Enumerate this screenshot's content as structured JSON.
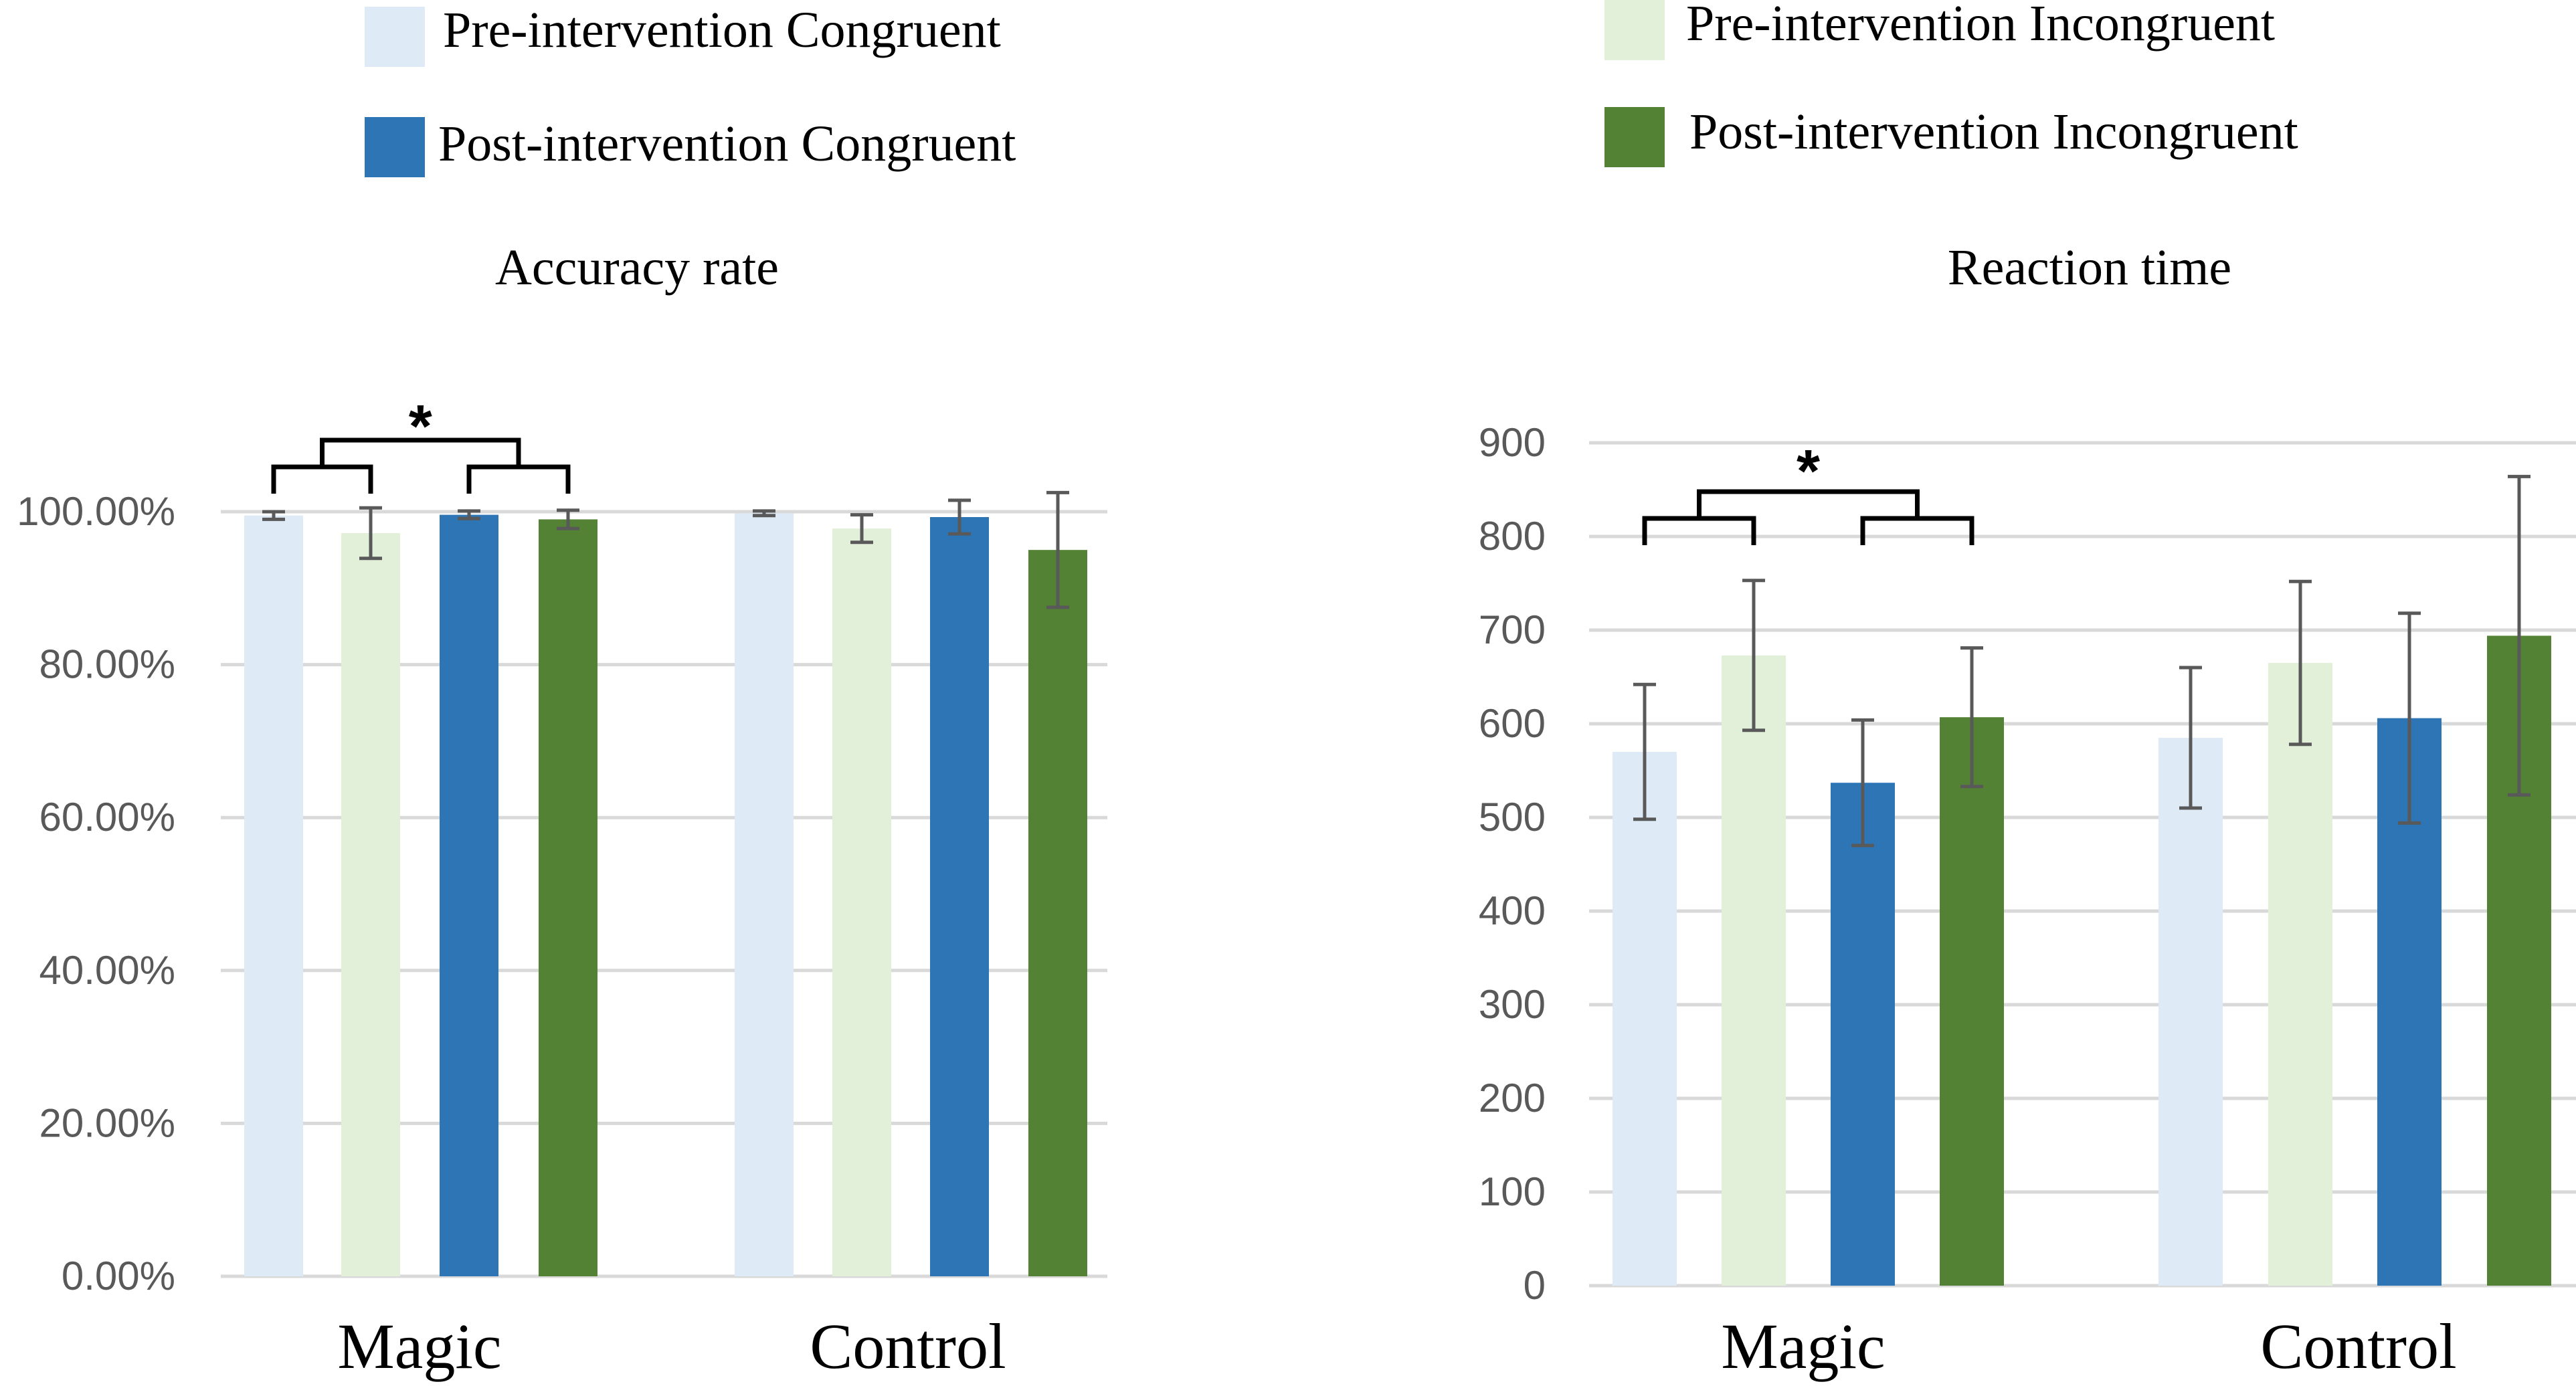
{
  "legend": [
    {
      "label": "Pre-intervention Congruent",
      "color": "#deebf7"
    },
    {
      "label": "Post-intervention Congruent",
      "color": "#2e75b6"
    },
    {
      "label": "Pre-intervention Incongruent",
      "color": "#e2f0d9"
    },
    {
      "label": "Post-intervention Incongruent",
      "color": "#548235"
    }
  ],
  "chart_data": [
    {
      "type": "bar",
      "title": "Accuracy rate",
      "categories": [
        "Magic",
        "Control"
      ],
      "ylim": [
        0,
        100
      ],
      "yticks": [
        0,
        20,
        40,
        60,
        80,
        100
      ],
      "ytick_labels": [
        "0.00%",
        "20.00%",
        "40.00%",
        "60.00%",
        "80.00%",
        "100.00%"
      ],
      "grid": true,
      "series": [
        {
          "name": "Pre-intervention Congruent",
          "color": "#deebf7",
          "values": [
            99.5,
            99.8
          ],
          "errors": [
            0.5,
            0.3
          ]
        },
        {
          "name": "Pre-intervention Incongruent",
          "color": "#e2f0d9",
          "values": [
            97.2,
            97.8
          ],
          "errors": [
            3.3,
            1.8
          ]
        },
        {
          "name": "Post-intervention Congruent",
          "color": "#2e75b6",
          "values": [
            99.6,
            99.3
          ],
          "errors": [
            0.5,
            2.2
          ]
        },
        {
          "name": "Post-intervention Incongruent",
          "color": "#548235",
          "values": [
            99.0,
            95.0
          ],
          "errors": [
            1.2,
            7.5
          ]
        }
      ],
      "annotations": [
        {
          "text": "*",
          "group": "Magic"
        }
      ]
    },
    {
      "type": "bar",
      "title": "Reaction time",
      "categories": [
        "Magic",
        "Control"
      ],
      "ylim": [
        0,
        900
      ],
      "yticks": [
        0,
        100,
        200,
        300,
        400,
        500,
        600,
        700,
        800,
        900
      ],
      "ytick_labels": [
        "0",
        "100",
        "200",
        "300",
        "400",
        "500",
        "600",
        "700",
        "800",
        "900"
      ],
      "grid": true,
      "series": [
        {
          "name": "Pre-intervention Congruent",
          "color": "#deebf7",
          "values": [
            570,
            585
          ],
          "errors": [
            72,
            75
          ]
        },
        {
          "name": "Pre-intervention Incongruent",
          "color": "#e2f0d9",
          "values": [
            673,
            665
          ],
          "errors": [
            80,
            87
          ]
        },
        {
          "name": "Post-intervention Congruent",
          "color": "#2e75b6",
          "values": [
            537,
            606
          ],
          "errors": [
            67,
            112
          ]
        },
        {
          "name": "Post-intervention Incongruent",
          "color": "#548235",
          "values": [
            607,
            694
          ],
          "errors": [
            74,
            170
          ]
        }
      ],
      "annotations": [
        {
          "text": "*",
          "group": "Magic"
        }
      ]
    }
  ]
}
